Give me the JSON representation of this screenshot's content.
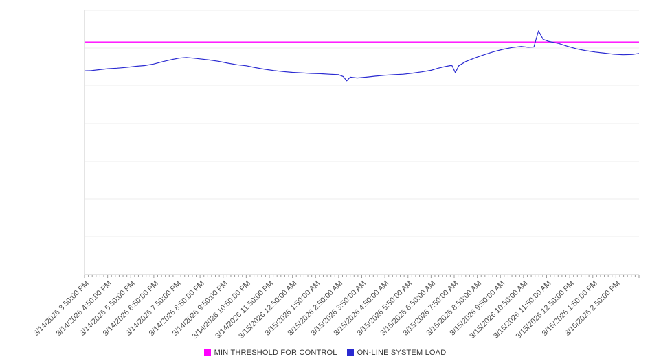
{
  "chart_data": {
    "type": "line",
    "title": "",
    "xlabel": "",
    "ylabel": "",
    "ylim": [
      0,
      100
    ],
    "xlim_hours": [
      0,
      24
    ],
    "grid": true,
    "y_tick_labels_visible": false,
    "legend_position": "bottom-center",
    "categories": [
      "3/14/2026 3:50:00 PM",
      "3/14/2026 4:50:00 PM",
      "3/14/2026 5:50:00 PM",
      "3/14/2026 6:50:00 PM",
      "3/14/2026 7:50:00 PM",
      "3/14/2026 8:50:00 PM",
      "3/14/2026 9:50:00 PM",
      "3/14/2026 10:50:00 PM",
      "3/14/2026 11:50:00 PM",
      "3/15/2026 12:50:00 AM",
      "3/15/2026 1:50:00 AM",
      "3/15/2026 2:50:00 AM",
      "3/15/2026 3:50:00 AM",
      "3/15/2026 4:50:00 AM",
      "3/15/2026 5:50:00 AM",
      "3/15/2026 6:50:00 AM",
      "3/15/2026 7:50:00 AM",
      "3/15/2026 8:50:00 AM",
      "3/15/2026 9:50:00 AM",
      "3/15/2026 10:50:00 AM",
      "3/15/2026 11:50:00 AM",
      "3/15/2026 12:50:00 PM",
      "3/15/2026 1:50:00 PM",
      "3/15/2026 2:50:00 PM"
    ],
    "series": [
      {
        "name": "MIN THRESHOLD FOR CONTROL",
        "color": "#ff00ff",
        "style": "horizontal-threshold",
        "value": 88.0
      },
      {
        "name": "ON-LINE SYSTEM LOAD",
        "color": "#2a2ad1",
        "style": "line",
        "points": [
          [
            0,
            77.1
          ],
          [
            0.3,
            77.2
          ],
          [
            0.6,
            77.5
          ],
          [
            1,
            77.9
          ],
          [
            1.4,
            78.1
          ],
          [
            1.8,
            78.4
          ],
          [
            2.2,
            78.8
          ],
          [
            2.6,
            79.1
          ],
          [
            3,
            79.7
          ],
          [
            3.4,
            80.6
          ],
          [
            3.8,
            81.4
          ],
          [
            4.1,
            81.9
          ],
          [
            4.4,
            82.1
          ],
          [
            4.7,
            81.9
          ],
          [
            5,
            81.6
          ],
          [
            5.4,
            81.2
          ],
          [
            5.8,
            80.7
          ],
          [
            6.2,
            80.0
          ],
          [
            6.6,
            79.4
          ],
          [
            7,
            79.0
          ],
          [
            7.4,
            78.3
          ],
          [
            7.8,
            77.7
          ],
          [
            8.2,
            77.2
          ],
          [
            8.6,
            76.8
          ],
          [
            9,
            76.5
          ],
          [
            9.4,
            76.3
          ],
          [
            9.8,
            76.1
          ],
          [
            10.2,
            76.0
          ],
          [
            10.6,
            75.8
          ],
          [
            11,
            75.6
          ],
          [
            11.2,
            74.9
          ],
          [
            11.35,
            73.3
          ],
          [
            11.5,
            74.7
          ],
          [
            11.8,
            74.4
          ],
          [
            12.2,
            74.7
          ],
          [
            12.6,
            75.1
          ],
          [
            13,
            75.4
          ],
          [
            13.4,
            75.6
          ],
          [
            13.8,
            75.8
          ],
          [
            14.2,
            76.2
          ],
          [
            14.6,
            76.7
          ],
          [
            15,
            77.3
          ],
          [
            15.3,
            78.1
          ],
          [
            15.6,
            78.7
          ],
          [
            15.9,
            79.2
          ],
          [
            16.05,
            76.4
          ],
          [
            16.2,
            79.0
          ],
          [
            16.5,
            80.6
          ],
          [
            16.9,
            82.0
          ],
          [
            17.3,
            83.2
          ],
          [
            17.7,
            84.3
          ],
          [
            18.1,
            85.2
          ],
          [
            18.5,
            85.9
          ],
          [
            18.9,
            86.3
          ],
          [
            19.2,
            86.0
          ],
          [
            19.45,
            86.1
          ],
          [
            19.65,
            92.2
          ],
          [
            19.85,
            89.0
          ],
          [
            20.1,
            88.2
          ],
          [
            20.5,
            87.5
          ],
          [
            20.9,
            86.4
          ],
          [
            21.3,
            85.4
          ],
          [
            21.7,
            84.7
          ],
          [
            22.1,
            84.2
          ],
          [
            22.5,
            83.8
          ],
          [
            22.9,
            83.4
          ],
          [
            23.3,
            83.2
          ],
          [
            23.7,
            83.3
          ],
          [
            24,
            83.7
          ]
        ]
      }
    ]
  }
}
